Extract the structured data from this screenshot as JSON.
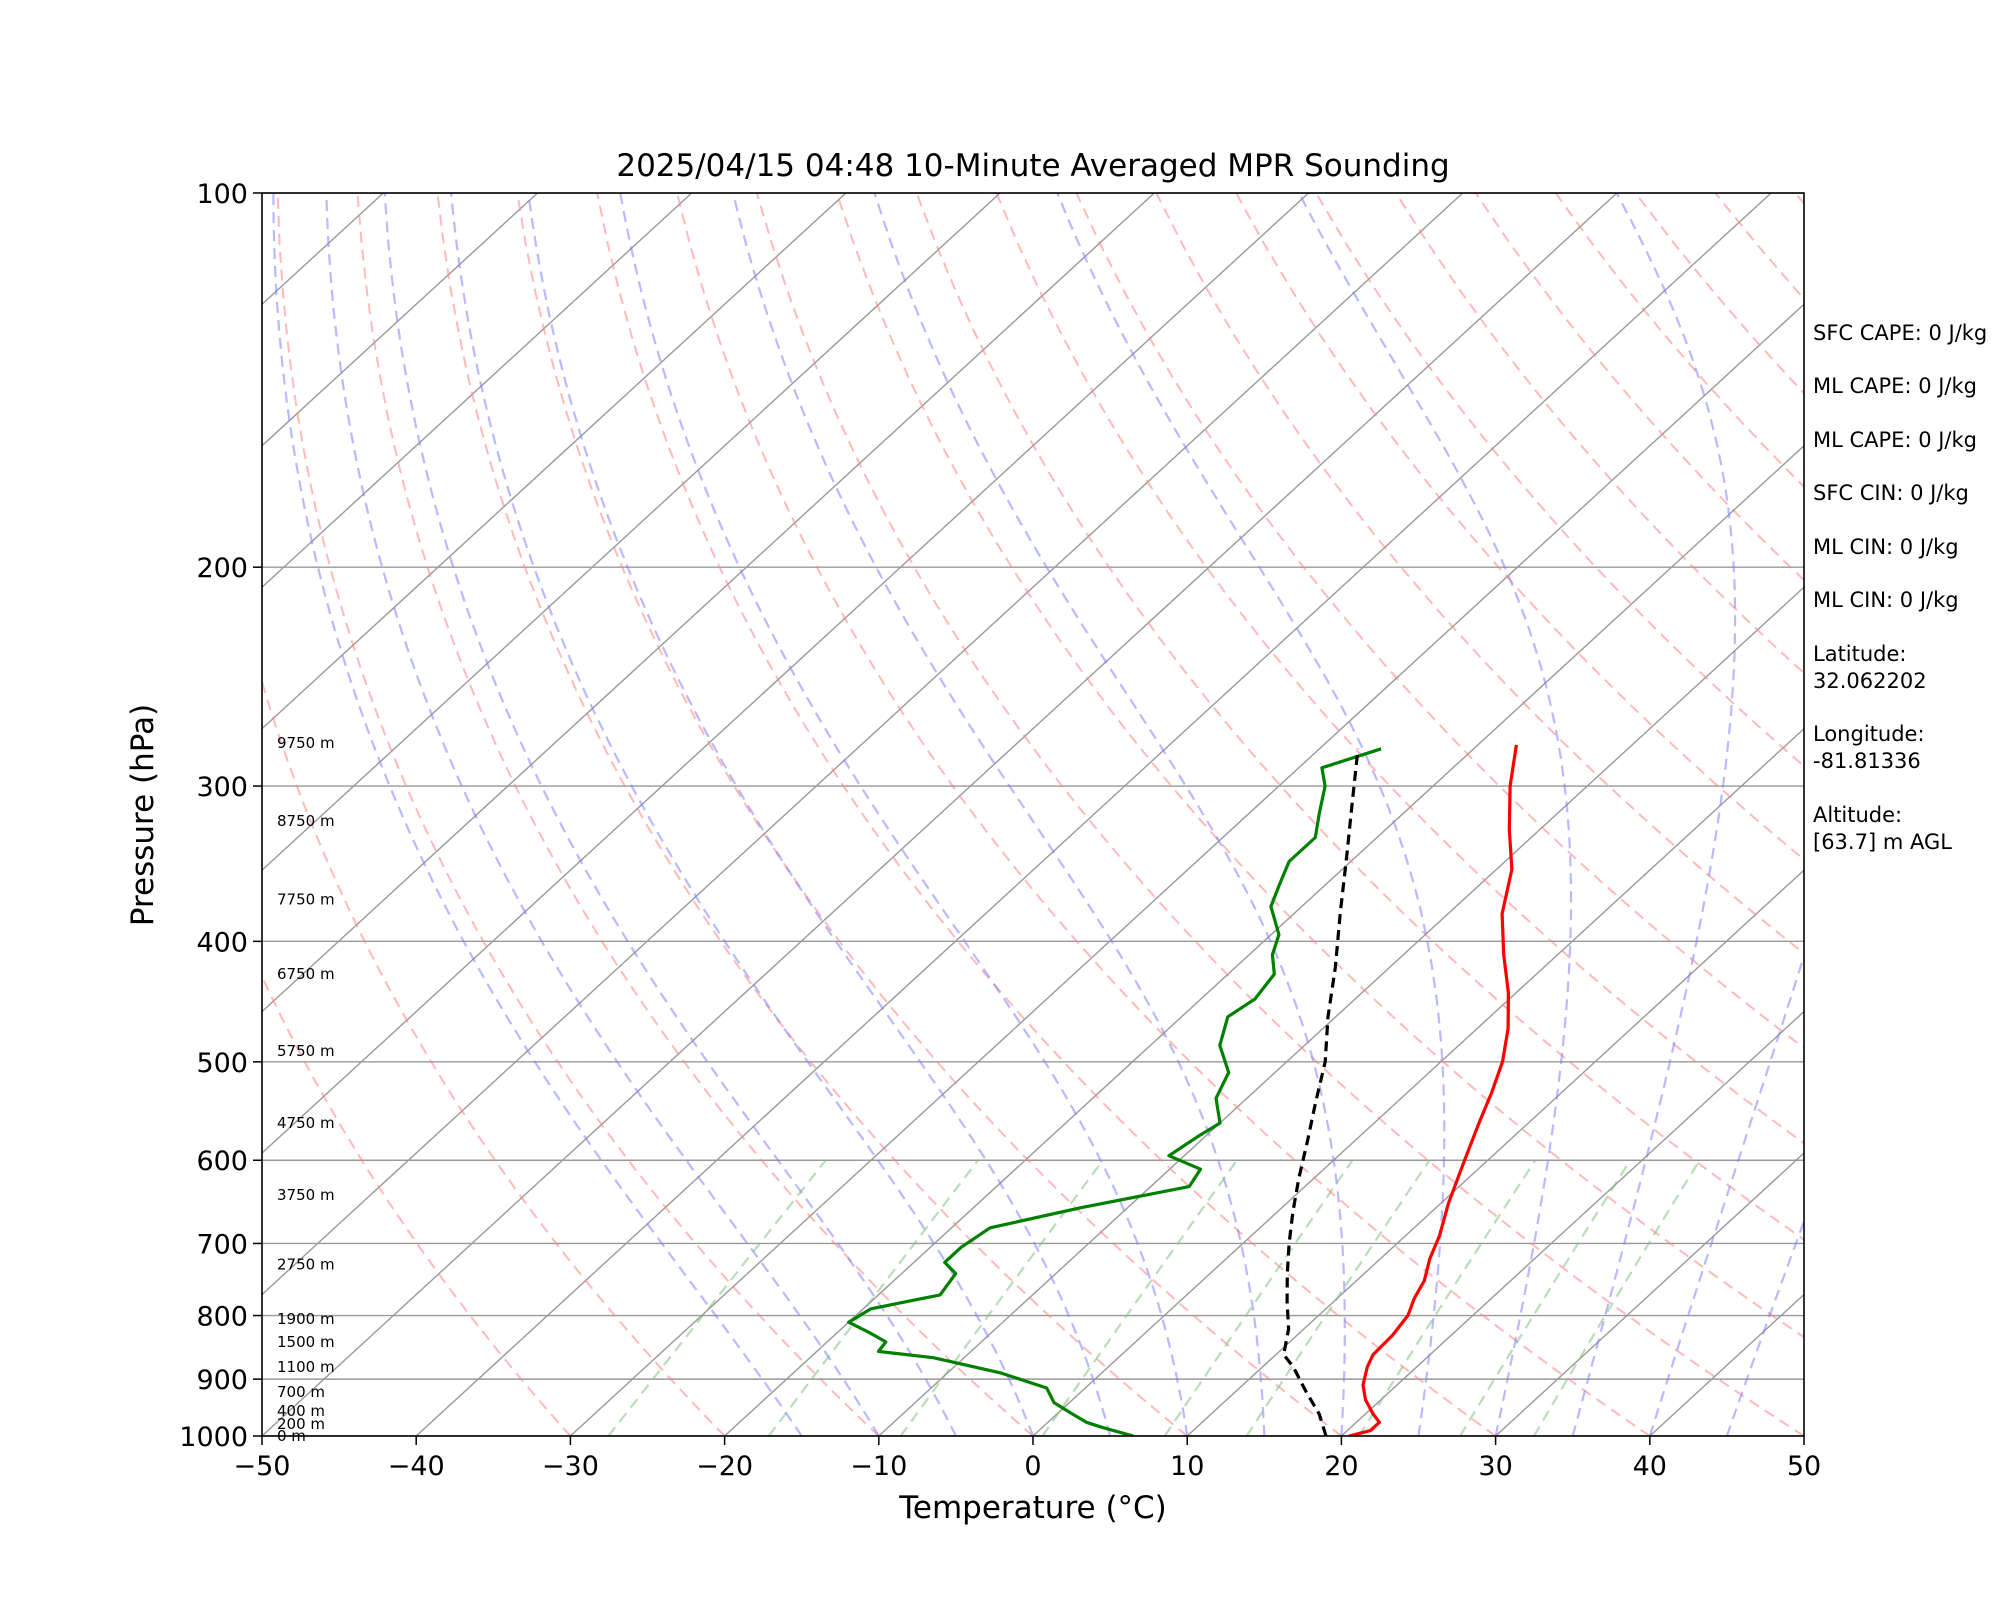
{
  "chart_data": {
    "type": "line",
    "title": "2025/04/15 04:48 10-Minute Averaged MPR Sounding",
    "xlabel": "Temperature (°C)",
    "ylabel": "Pressure (hPa)",
    "xlim": [
      -50,
      50
    ],
    "ylim": [
      1000,
      100
    ],
    "y_scale": "log",
    "skew": "skew-T log-p",
    "grid": true,
    "x_ticks": [
      "−50",
      "−40",
      "−30",
      "−20",
      "−10",
      "0",
      "10",
      "20",
      "30",
      "40",
      "50"
    ],
    "y_ticks": [
      "1000",
      "900",
      "800",
      "700",
      "600",
      "500",
      "400",
      "300",
      "200",
      "100"
    ],
    "x_tick_values": [
      -50,
      -40,
      -30,
      -20,
      -10,
      0,
      10,
      20,
      30,
      40,
      50
    ],
    "y_tick_values": [
      1000,
      900,
      800,
      700,
      600,
      500,
      400,
      300,
      200,
      100
    ],
    "height_labels": [
      {
        "p": 1000,
        "text": "0 m"
      },
      {
        "p": 978,
        "text": "200 m"
      },
      {
        "p": 955,
        "text": "400 m"
      },
      {
        "p": 922,
        "text": "700 m"
      },
      {
        "p": 880,
        "text": "1100 m"
      },
      {
        "p": 840,
        "text": "1500 m"
      },
      {
        "p": 805,
        "text": "1900 m"
      },
      {
        "p": 728,
        "text": "2750 m"
      },
      {
        "p": 640,
        "text": "3750 m"
      },
      {
        "p": 560,
        "text": "4750 m"
      },
      {
        "p": 490,
        "text": "5750 m"
      },
      {
        "p": 425,
        "text": "6750 m"
      },
      {
        "p": 370,
        "text": "7750 m"
      },
      {
        "p": 320,
        "text": "8750 m"
      },
      {
        "p": 277,
        "text": "9750 m"
      }
    ],
    "series": [
      {
        "role": "temperature",
        "color": "#ff0000",
        "points": [
          [
            1000,
            20.5
          ],
          [
            990,
            21.5
          ],
          [
            975,
            21.5
          ],
          [
            960,
            20.5
          ],
          [
            935,
            19
          ],
          [
            910,
            17.8
          ],
          [
            880,
            16.8
          ],
          [
            860,
            16.3
          ],
          [
            830,
            16.2
          ],
          [
            800,
            15.8
          ],
          [
            775,
            15.0
          ],
          [
            750,
            14.4
          ],
          [
            720,
            13.2
          ],
          [
            690,
            12.2
          ],
          [
            650,
            10.5
          ],
          [
            600,
            8.5
          ],
          [
            560,
            6.8
          ],
          [
            530,
            5.5
          ],
          [
            500,
            4.0
          ],
          [
            470,
            2.0
          ],
          [
            440,
            -0.5
          ],
          [
            410,
            -3.5
          ],
          [
            380,
            -6.5
          ],
          [
            350,
            -9.0
          ],
          [
            325,
            -12.0
          ],
          [
            300,
            -15.0
          ],
          [
            278,
            -17.5
          ]
        ]
      },
      {
        "role": "dewpoint",
        "color": "#008000",
        "points": [
          [
            1000,
            6.5
          ],
          [
            985,
            4.0
          ],
          [
            975,
            2.5
          ],
          [
            960,
            1.0
          ],
          [
            940,
            -1.0
          ],
          [
            915,
            -2.5
          ],
          [
            890,
            -6.5
          ],
          [
            865,
            -12.0
          ],
          [
            855,
            -16.0
          ],
          [
            840,
            -16.2
          ],
          [
            825,
            -18.0
          ],
          [
            810,
            -20.0
          ],
          [
            790,
            -19.5
          ],
          [
            770,
            -16.0
          ],
          [
            740,
            -16.5
          ],
          [
            725,
            -18.0
          ],
          [
            705,
            -18.0
          ],
          [
            680,
            -17.5
          ],
          [
            655,
            -13.0
          ],
          [
            630,
            -7.5
          ],
          [
            610,
            -8.0
          ],
          [
            595,
            -11.0
          ],
          [
            575,
            -10.5
          ],
          [
            560,
            -10.0
          ],
          [
            535,
            -12.0
          ],
          [
            510,
            -13.0
          ],
          [
            485,
            -15.5
          ],
          [
            460,
            -17.0
          ],
          [
            445,
            -16.5
          ],
          [
            425,
            -17.0
          ],
          [
            410,
            -18.5
          ],
          [
            395,
            -19.5
          ],
          [
            375,
            -22.0
          ],
          [
            360,
            -23.0
          ],
          [
            345,
            -24.0
          ],
          [
            330,
            -24.0
          ],
          [
            315,
            -25.5
          ],
          [
            300,
            -27.0
          ],
          [
            290,
            -28.5
          ],
          [
            280,
            -26.0
          ]
        ]
      },
      {
        "role": "parcel",
        "color": "#000000",
        "points": [
          [
            1000,
            19.0
          ],
          [
            960,
            17.0
          ],
          [
            920,
            14.5
          ],
          [
            880,
            12.0
          ],
          [
            860,
            10.5
          ],
          [
            820,
            9.0
          ],
          [
            780,
            7.0
          ],
          [
            740,
            5.0
          ],
          [
            700,
            3.0
          ],
          [
            660,
            1.0
          ],
          [
            620,
            -1.0
          ],
          [
            580,
            -3.0
          ],
          [
            540,
            -5.2
          ],
          [
            500,
            -7.5
          ],
          [
            460,
            -10.5
          ],
          [
            420,
            -13.5
          ],
          [
            380,
            -17.0
          ],
          [
            340,
            -20.8
          ],
          [
            310,
            -24.0
          ],
          [
            280,
            -27.5
          ]
        ]
      }
    ],
    "background": {
      "isotherm_color": "#999999",
      "dry_adiabat_color": "#ff8080",
      "moist_adiabat_color": "#8080ff",
      "mixing_ratio_color": "#80c080"
    }
  },
  "info_panel": [
    "SFC CAPE: 0 J/kg",
    "ML CAPE: 0 J/kg",
    "ML CAPE: 0 J/kg",
    "SFC CIN: 0 J/kg",
    "ML CIN: 0 J/kg",
    "ML CIN: 0 J/kg",
    "Latitude:",
    "32.062202",
    "Longitude:",
    "-81.81336",
    "Altitude:",
    "[63.7] m AGL"
  ]
}
